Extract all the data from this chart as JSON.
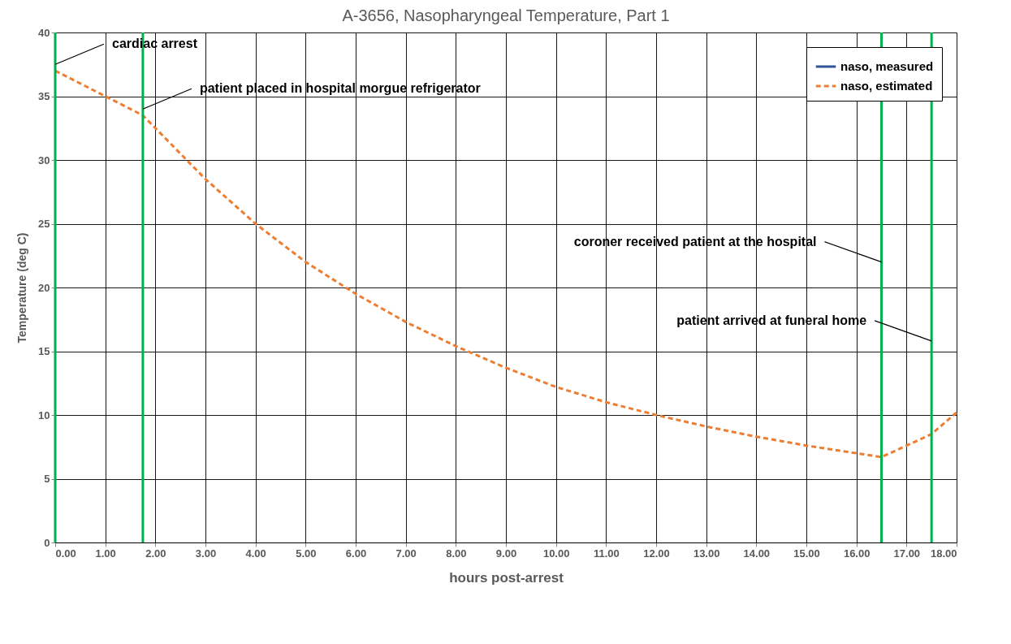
{
  "chart_data": {
    "type": "line",
    "title": "A-3656, Nasopharyngeal Temperature, Part 1",
    "xlabel": "hours post-arrest",
    "ylabel": "Temperature (deg C)",
    "x": [
      0,
      1,
      1.75,
      3,
      4,
      5,
      6,
      7,
      8,
      9,
      10,
      11,
      12,
      13,
      14,
      15,
      16,
      16.5,
      17.5,
      18
    ],
    "series": [
      {
        "name": "naso, measured",
        "color": "#2f5597",
        "line_style": "solid",
        "values": [
          null,
          null,
          null,
          null,
          null,
          null,
          null,
          null,
          null,
          null,
          null,
          null,
          null,
          null,
          null,
          null,
          null,
          null,
          null,
          null
        ]
      },
      {
        "name": "naso, estimated",
        "color": "#ed7d31",
        "line_style": "dashed",
        "values": [
          37,
          35,
          33.5,
          28.5,
          25,
          22,
          19.5,
          17.3,
          15.4,
          13.7,
          12.2,
          11,
          10,
          9.1,
          8.3,
          7.6,
          7,
          6.7,
          8.5,
          10.2
        ]
      }
    ],
    "xlim": [
      0,
      18
    ],
    "ylim": [
      0,
      40
    ],
    "xticks": [
      {
        "value": 0,
        "label": "0.00"
      },
      {
        "value": 1,
        "label": "1.00"
      },
      {
        "value": 2,
        "label": "2.00"
      },
      {
        "value": 3,
        "label": "3.00"
      },
      {
        "value": 4,
        "label": "4.00"
      },
      {
        "value": 5,
        "label": "5.00"
      },
      {
        "value": 6,
        "label": "6.00"
      },
      {
        "value": 7,
        "label": "7.00"
      },
      {
        "value": 8,
        "label": "8.00"
      },
      {
        "value": 9,
        "label": "9.00"
      },
      {
        "value": 10,
        "label": "10.00"
      },
      {
        "value": 11,
        "label": "11.00"
      },
      {
        "value": 12,
        "label": "12.00"
      },
      {
        "value": 13,
        "label": "13.00"
      },
      {
        "value": 14,
        "label": "14.00"
      },
      {
        "value": 15,
        "label": "15.00"
      },
      {
        "value": 16,
        "label": "16.00"
      },
      {
        "value": 17,
        "label": "17.00"
      },
      {
        "value": 18,
        "label": "18.00"
      }
    ],
    "yticks": [
      0,
      5,
      10,
      15,
      20,
      25,
      30,
      35,
      40
    ],
    "ref_lines": [
      {
        "axis": "x",
        "value": 0,
        "color": "#00b050"
      },
      {
        "axis": "x",
        "value": 1.75,
        "color": "#00b050"
      },
      {
        "axis": "x",
        "value": 16.5,
        "color": "#00b050"
      },
      {
        "axis": "x",
        "value": 17.5,
        "color": "#00b050"
      }
    ],
    "annotations": [
      {
        "text": "cardiac arrest",
        "x": 0,
        "y": 37.5
      },
      {
        "text": "patient placed in hospital morgue refrigerator",
        "x": 1.75,
        "y": 34
      },
      {
        "text": "coroner received patient at the hospital",
        "x": 16.5,
        "y": 22
      },
      {
        "text": "patient arrived at funeral home",
        "x": 17.5,
        "y": 15.8
      }
    ],
    "grid": true,
    "legend": "top right"
  }
}
